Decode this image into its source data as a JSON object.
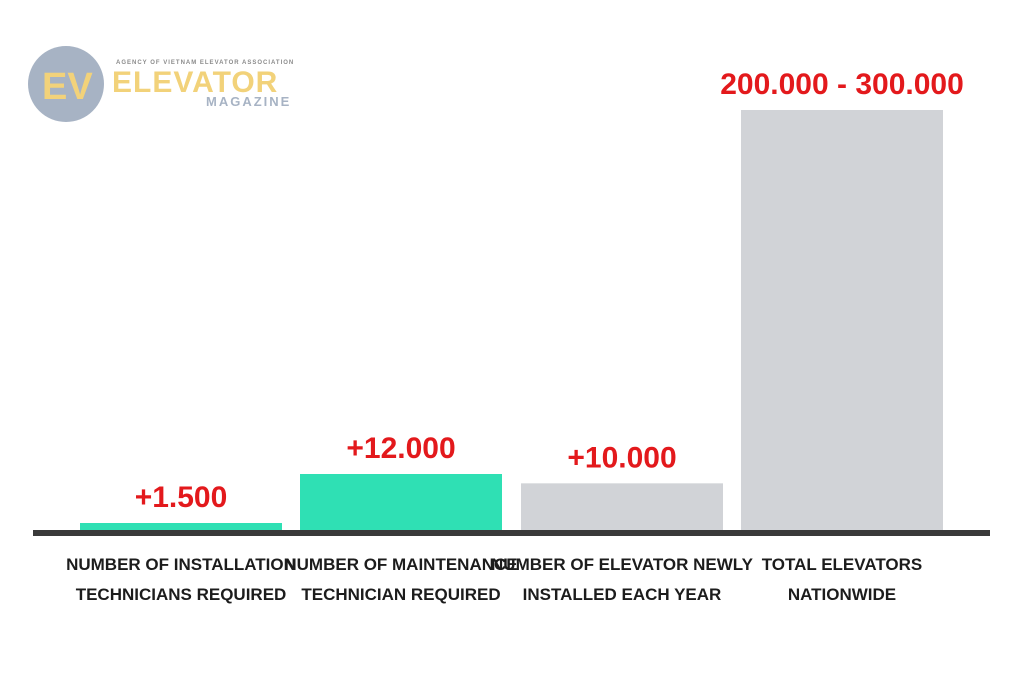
{
  "logo": {
    "initials": "EV",
    "top_text": "AGENCY OF VIETNAM ELEVATOR ASSOCIATION",
    "name": "ELEVATOR",
    "sub": "MAGAZINE"
  },
  "colors": {
    "highlight_bar": "#2fe0b4",
    "neutral_bar": "#d1d3d7",
    "value_text": "#e3191c",
    "baseline": "#3a3a3a",
    "logo_circle": "#a7b3c4",
    "logo_gold": "#f2d27a"
  },
  "chart_data": {
    "type": "bar",
    "categories": [
      "NUMBER OF INSTALLATION TECHNICIANS REQUIRED",
      "NUMBER OF MAINTENANCE TECHNICIAN REQUIRED",
      "NUMBER OF ELEVATOR NEWLY INSTALLED EACH YEAR",
      "TOTAL ELEVATORS NATIONWIDE"
    ],
    "category_lines": [
      [
        "NUMBER OF INSTALLATION",
        "TECHNICIANS REQUIRED"
      ],
      [
        "NUMBER OF MAINTENANCE",
        "TECHNICIAN REQUIRED"
      ],
      [
        "NUMBER OF ELEVATOR NEWLY",
        "INSTALLED EACH YEAR"
      ],
      [
        "TOTAL ELEVATORS",
        "NATIONWIDE"
      ]
    ],
    "values": [
      1500,
      12000,
      10000,
      300000
    ],
    "value_labels": [
      "+1.500",
      "+12.000",
      "+10.000",
      "200.000 - 300.000"
    ],
    "bar_colors": [
      "#2fe0b4",
      "#2fe0b4",
      "#d1d3d7",
      "#d1d3d7"
    ],
    "grid": false,
    "legend": "none"
  }
}
